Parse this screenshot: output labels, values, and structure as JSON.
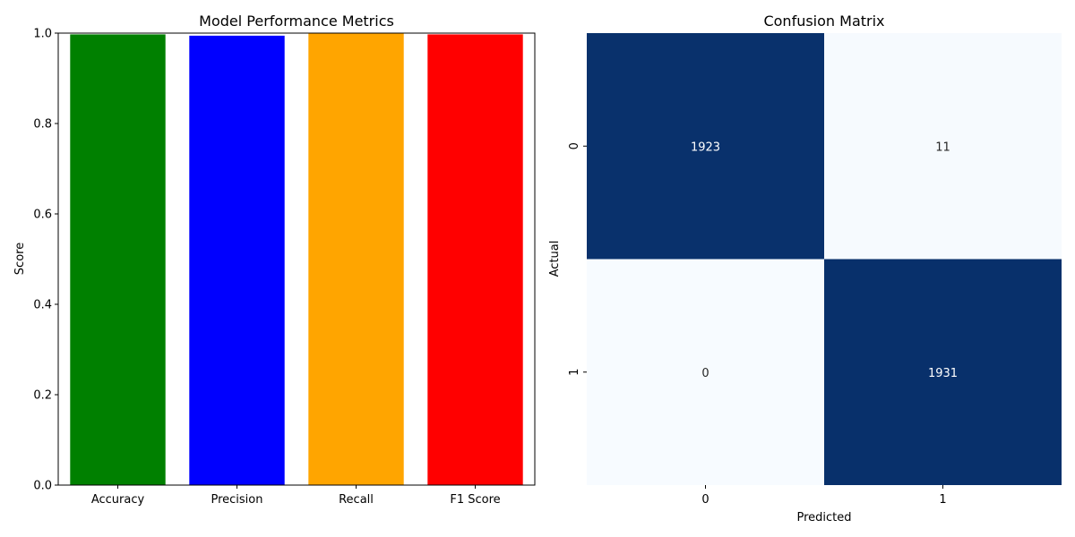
{
  "chart_data": [
    {
      "type": "bar",
      "title": "Model Performance Metrics",
      "xlabel": "",
      "ylabel": "Score",
      "categories": [
        "Accuracy",
        "Precision",
        "Recall",
        "F1 Score"
      ],
      "values": [
        0.9972,
        0.9943,
        1.0,
        0.9972
      ],
      "colors": [
        "#008000",
        "#0000ff",
        "#ffa500",
        "#ff0000"
      ],
      "ylim": [
        0,
        1
      ],
      "yticks": [
        "0.0",
        "0.2",
        "0.4",
        "0.6",
        "0.8",
        "1.0"
      ],
      "grid": false
    },
    {
      "type": "heatmap",
      "title": "Confusion Matrix",
      "xlabel": "Predicted",
      "ylabel": "Actual",
      "x_categories": [
        "0",
        "1"
      ],
      "y_categories": [
        "0",
        "1"
      ],
      "values": [
        [
          1923,
          11
        ],
        [
          0,
          1931
        ]
      ],
      "colormap": {
        "low": "#f7fbff",
        "high": "#08306b"
      },
      "annotation_colors": {
        "on_dark": "#ffffff",
        "on_light": "#262626"
      },
      "colorbar": false
    }
  ]
}
